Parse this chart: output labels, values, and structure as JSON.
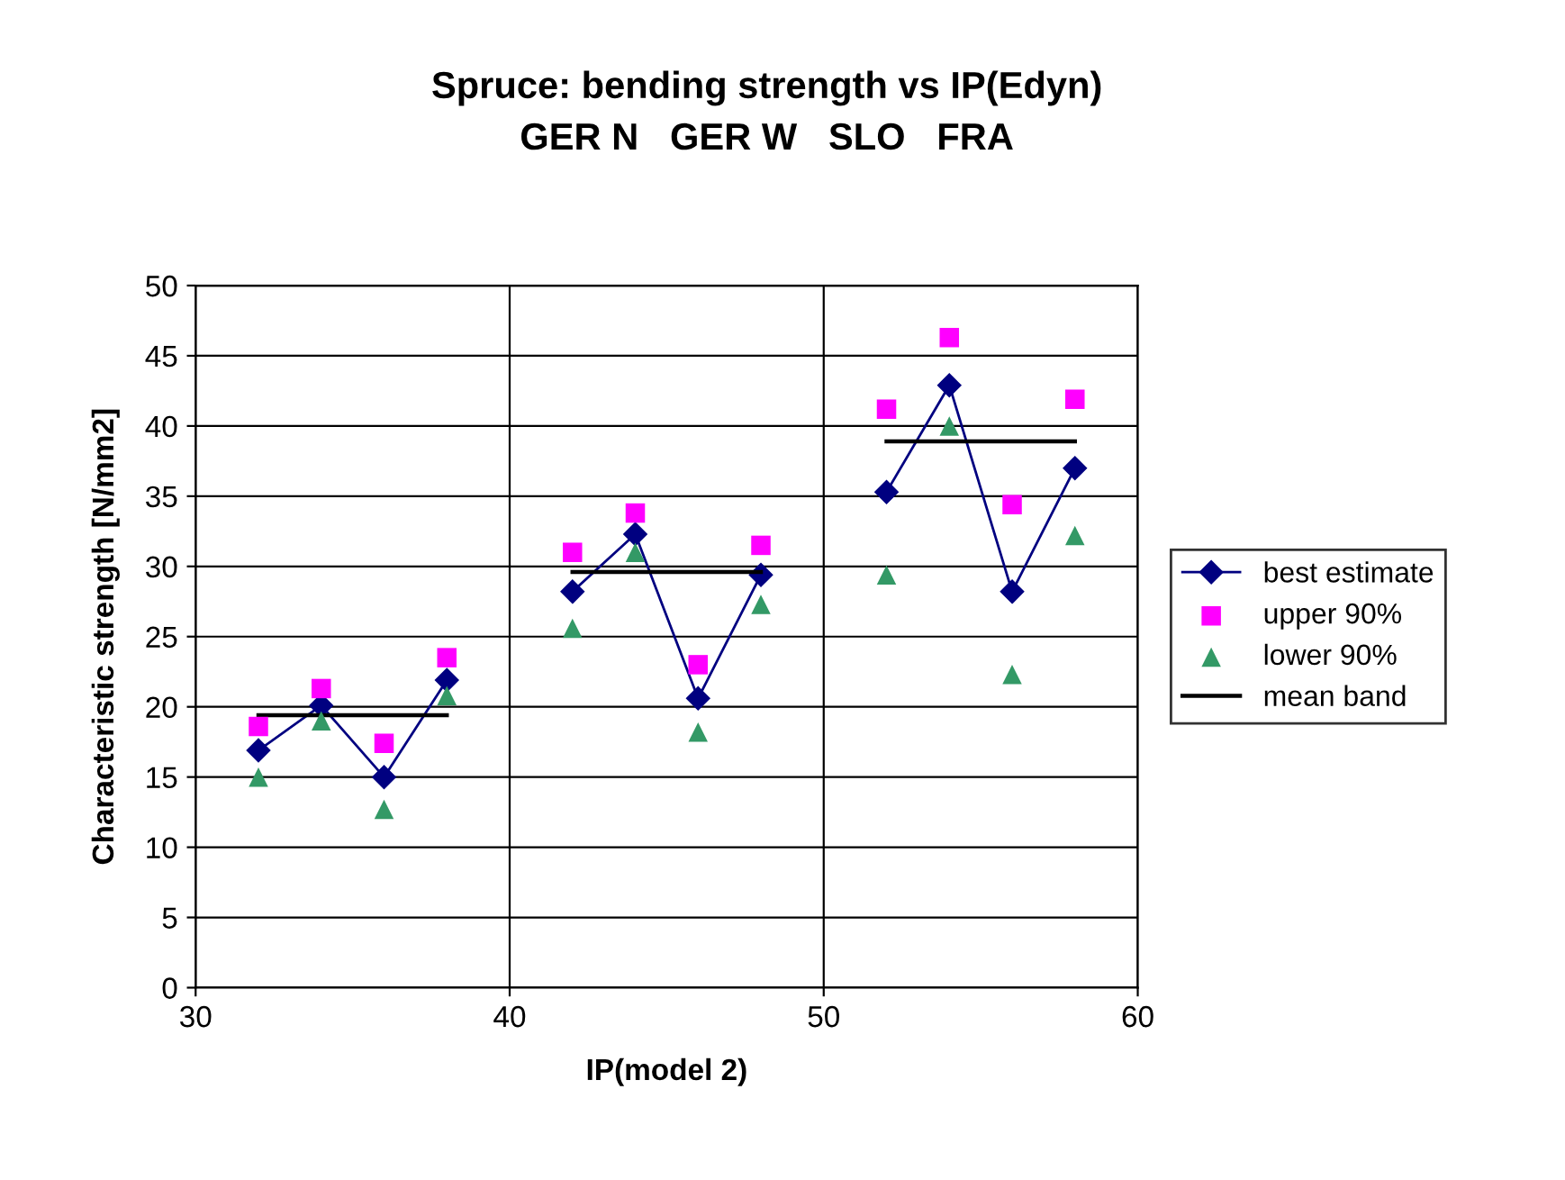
{
  "chart_data": {
    "type": "line",
    "title": "Spruce: bending strength vs IP(Edyn)\nGER N   GER W   SLO   FRA",
    "xlabel": "IP(model 2)",
    "ylabel": "Characteristic strength [N/mm2]",
    "xlim": [
      30,
      60
    ],
    "xticks": [
      30,
      40,
      50,
      60
    ],
    "ylim": [
      0,
      50
    ],
    "yticks": [
      0,
      5,
      10,
      15,
      20,
      25,
      30,
      35,
      40,
      45,
      50
    ],
    "grid": true,
    "legend": "right",
    "series": [
      {
        "name": "best estimate",
        "marker": "diamond",
        "color": "#000080",
        "x": [
          32,
          34,
          36,
          38,
          40,
          42,
          44,
          46,
          48,
          50,
          52,
          54,
          56,
          58
        ],
        "values": [
          16.9,
          20.1,
          15.0,
          21.9,
          null,
          28.2,
          32.3,
          20.6,
          29.4,
          null,
          35.3,
          42.9,
          28.2,
          37.0
        ]
      },
      {
        "name": "upper 90%",
        "type": "scatter",
        "marker": "square",
        "color": "#ff00ff",
        "x": [
          32,
          34,
          36,
          38,
          42,
          44,
          46,
          48,
          52,
          54,
          56,
          58
        ],
        "values": [
          18.6,
          21.3,
          17.4,
          23.5,
          31.0,
          33.8,
          23.0,
          31.5,
          41.2,
          46.3,
          34.4,
          41.9
        ]
      },
      {
        "name": "lower 90%",
        "type": "scatter",
        "marker": "triangle",
        "color": "#339966",
        "x": [
          32,
          34,
          36,
          38,
          42,
          44,
          46,
          48,
          52,
          54,
          56,
          58
        ],
        "values": [
          15.0,
          19.0,
          12.7,
          20.8,
          25.6,
          31.0,
          18.2,
          27.3,
          29.4,
          40.0,
          22.3,
          32.2
        ]
      },
      {
        "name": "mean band",
        "type": "line",
        "marker": "none",
        "color": "#000000",
        "x": [
          32,
          38,
          40,
          42,
          48,
          50,
          52,
          58
        ],
        "values": [
          19.4,
          19.4,
          null,
          29.6,
          29.6,
          null,
          38.9,
          38.9
        ]
      }
    ]
  }
}
